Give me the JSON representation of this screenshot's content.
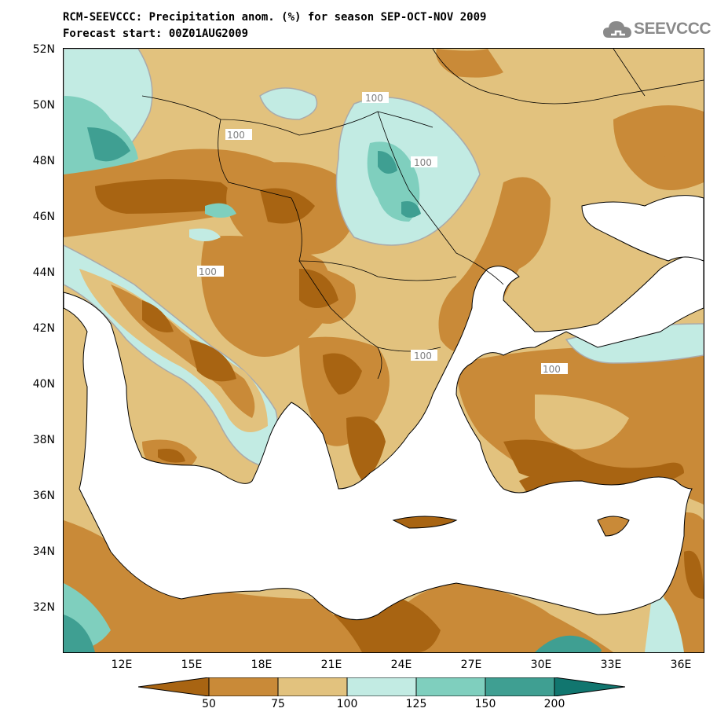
{
  "title": {
    "line1": "RCM-SEEVCCC: Precipitation anom. (%) for season SEP-OCT-NOV 2009",
    "line2": "Forecast start: 00Z01AUG2009"
  },
  "logo": {
    "text": "SEEVCCC",
    "icon": "cloud-icon"
  },
  "map": {
    "latitude_labels": [
      "52N",
      "50N",
      "48N",
      "46N",
      "44N",
      "42N",
      "40N",
      "38N",
      "36N",
      "34N",
      "32N"
    ],
    "longitude_labels": [
      "12E",
      "15E",
      "18E",
      "21E",
      "24E",
      "27E",
      "30E",
      "33E",
      "36E"
    ],
    "contour_label": "100"
  },
  "legend": {
    "thresholds": [
      "50",
      "75",
      "100",
      "125",
      "150",
      "200"
    ],
    "colors": [
      "#a86412",
      "#c98a38",
      "#e2c27e",
      "#c2ebe3",
      "#7fcfbe",
      "#3f9f92",
      "#11766f"
    ]
  }
}
